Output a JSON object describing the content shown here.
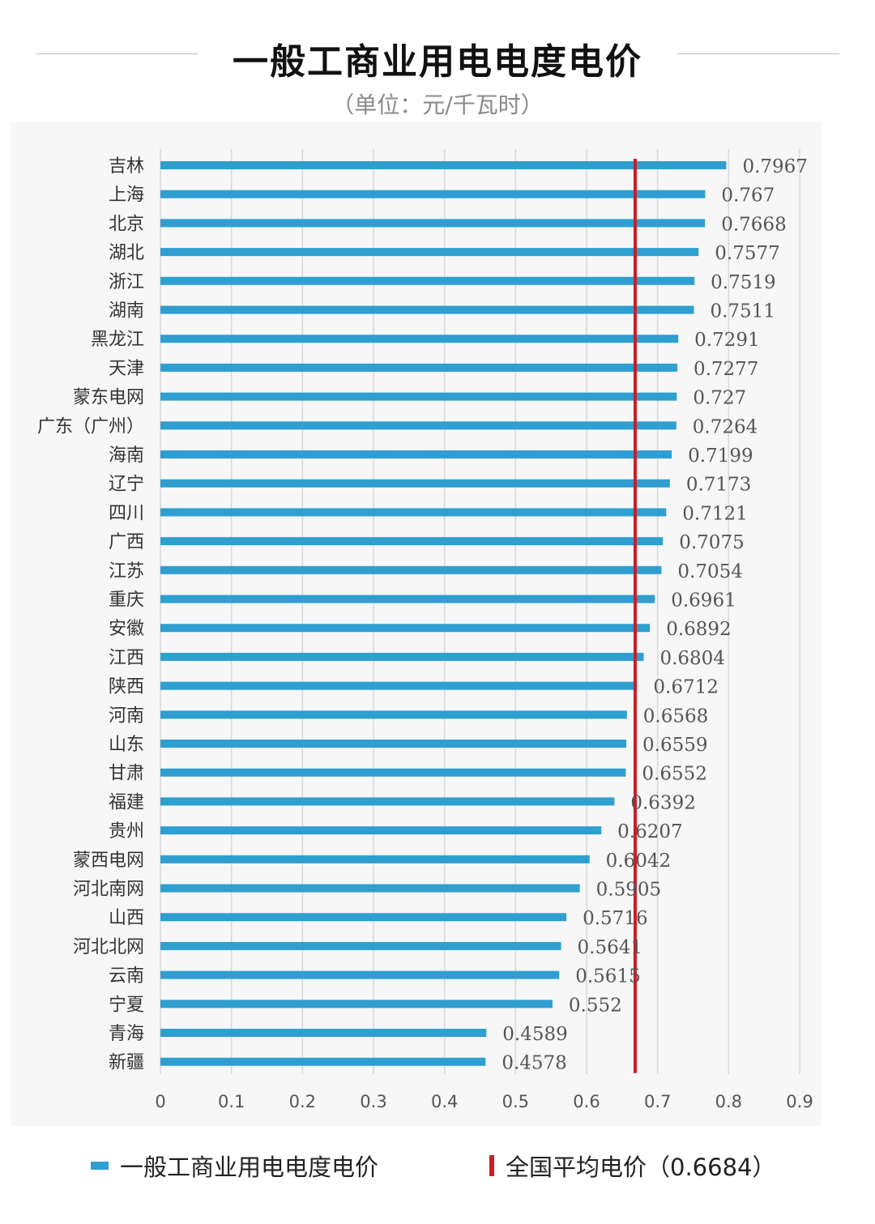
{
  "title": "一般工商业用电电度电价",
  "subtitle": "（单位：元/千瓦时）",
  "legend": {
    "bars_label": "一般工商业用电电度电价",
    "avg_label": "全国平均电价（0.6684）"
  },
  "colors": {
    "bar": "#2e9fd0",
    "average_line": "#c81e28",
    "grid": "#d9d9d9"
  },
  "chart_data": {
    "type": "bar",
    "orientation": "horizontal",
    "categories": [
      "吉林",
      "上海",
      "北京",
      "湖北",
      "浙江",
      "湖南",
      "黑龙江",
      "天津",
      "蒙东电网",
      "广东（广州）",
      "海南",
      "辽宁",
      "四川",
      "广西",
      "江苏",
      "重庆",
      "安徽",
      "江西",
      "陕西",
      "河南",
      "山东",
      "甘肃",
      "福建",
      "贵州",
      "蒙西电网",
      "河北南网",
      "山西",
      "河北北网",
      "云南",
      "宁夏",
      "青海",
      "新疆"
    ],
    "values": [
      0.7967,
      0.767,
      0.7668,
      0.7577,
      0.7519,
      0.7511,
      0.7291,
      0.7277,
      0.727,
      0.7264,
      0.7199,
      0.7173,
      0.7121,
      0.7075,
      0.7054,
      0.6961,
      0.6892,
      0.6804,
      0.6712,
      0.6568,
      0.6559,
      0.6552,
      0.6392,
      0.6207,
      0.6042,
      0.5905,
      0.5716,
      0.5641,
      0.5615,
      0.552,
      0.4589,
      0.4578
    ],
    "value_labels": [
      "0.7967",
      "0.767",
      "0.7668",
      "0.7577",
      "0.7519",
      "0.7511",
      "0.7291",
      "0.7277",
      "0.727",
      "0.7264",
      "0.7199",
      "0.7173",
      "0.7121",
      "0.7075",
      "0.7054",
      "0.6961",
      "0.6892",
      "0.6804",
      "0.6712",
      "0.6568",
      "0.6559",
      "0.6552",
      "0.6392",
      "0.6207",
      "0.6042",
      "0.5905",
      "0.5716",
      "0.5641",
      "0.5615",
      "0.552",
      "0.4589",
      "0.4578"
    ],
    "xlim": [
      0,
      0.9
    ],
    "x_ticks": [
      "0",
      "0.1",
      "0.2",
      "0.3",
      "0.4",
      "0.5",
      "0.6",
      "0.7",
      "0.8",
      "0.9"
    ],
    "average_line": 0.6684,
    "grid": true,
    "legend_position": "bottom"
  }
}
